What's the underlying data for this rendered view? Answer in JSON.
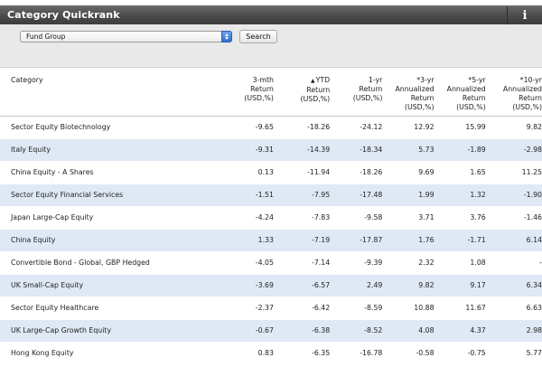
{
  "panel": {
    "title": "Category Quickrank",
    "info_icon": "i"
  },
  "filter": {
    "selected": "Fund Group",
    "search_label": "Search"
  },
  "table": {
    "headers": [
      {
        "lines": [
          "Category"
        ]
      },
      {
        "lines": [
          "3-mth",
          "Return",
          "(USD,%)"
        ]
      },
      {
        "lines": [
          "YTD",
          "Return",
          "(USD,%)"
        ],
        "sorted": true,
        "sort_icon": "▲"
      },
      {
        "lines": [
          "1-yr",
          "Return",
          "(USD,%)"
        ]
      },
      {
        "lines": [
          "*3-yr",
          "Annualized",
          "Return",
          "(USD,%)"
        ]
      },
      {
        "lines": [
          "*5-yr",
          "Annualized",
          "Return",
          "(USD,%)"
        ]
      },
      {
        "lines": [
          "*10-yr",
          "Annualized",
          "Return",
          "(USD,%)"
        ]
      }
    ],
    "rows": [
      [
        "Sector Equity Biotechnology",
        "-9.65",
        "-18.26",
        "-24.12",
        "12.92",
        "15.99",
        "9.82"
      ],
      [
        "Italy Equity",
        "-9.31",
        "-14.39",
        "-18.34",
        "5.73",
        "-1.89",
        "-2.98"
      ],
      [
        "China Equity - A Shares",
        "0.13",
        "-11.94",
        "-18.26",
        "9.69",
        "1.65",
        "11.25"
      ],
      [
        "Sector Equity Financial Services",
        "-1.51",
        "-7.95",
        "-17.48",
        "1.99",
        "1.32",
        "-1.90"
      ],
      [
        "Japan Large-Cap Equity",
        "-4.24",
        "-7.83",
        "-9.58",
        "3.71",
        "3.76",
        "-1.46"
      ],
      [
        "China Equity",
        "1.33",
        "-7.19",
        "-17.87",
        "1.76",
        "-1.71",
        "6.14"
      ],
      [
        "Convertible Bond - Global, GBP Hedged",
        "-4.05",
        "-7.14",
        "-9.39",
        "2.32",
        "1.08",
        "-"
      ],
      [
        "UK Small-Cap Equity",
        "-3.69",
        "-6.57",
        "2.49",
        "9.82",
        "9.17",
        "6.34"
      ],
      [
        "Sector Equity Healthcare",
        "-2.37",
        "-6.42",
        "-8.59",
        "10.88",
        "11.67",
        "6.63"
      ],
      [
        "UK Large-Cap Growth Equity",
        "-0.67",
        "-6.38",
        "-8.52",
        "4.08",
        "4.37",
        "2.98"
      ],
      [
        "Hong Kong Equity",
        "0.83",
        "-6.35",
        "-16.78",
        "-0.58",
        "-0.75",
        "5.77"
      ]
    ]
  }
}
